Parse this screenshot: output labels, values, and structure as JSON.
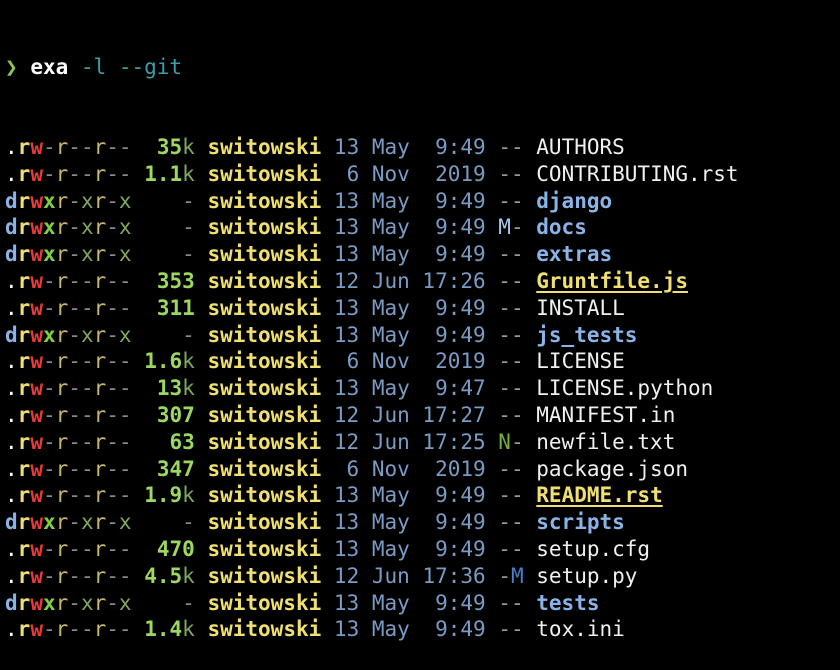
{
  "prompt": {
    "symbol": "❯",
    "command": "exa",
    "args": "-l --git"
  },
  "colors": {
    "background": "#000000",
    "user": "#f0e070",
    "size": "#9cd860",
    "date": "#7a9cc4",
    "directory": "#8ab4e8"
  },
  "rows": [
    {
      "perms": ".rw-r--r--",
      "size": "35",
      "unit": "k",
      "user": "switowski",
      "date": "13 May",
      "time": "9:49",
      "git": "--",
      "name": "AUTHORS",
      "type": "file"
    },
    {
      "perms": ".rw-r--r--",
      "size": "1.1",
      "unit": "k",
      "user": "switowski",
      "date": " 6 Nov",
      "time": "2019",
      "git": "--",
      "name": "CONTRIBUTING.rst",
      "type": "file"
    },
    {
      "perms": "drwxr-xr-x",
      "size": "-",
      "unit": "",
      "user": "switowski",
      "date": "13 May",
      "time": "9:49",
      "git": "--",
      "name": "django",
      "type": "dir"
    },
    {
      "perms": "drwxr-xr-x",
      "size": "-",
      "unit": "",
      "user": "switowski",
      "date": "13 May",
      "time": "9:49",
      "git": "M-",
      "name": "docs",
      "type": "dir"
    },
    {
      "perms": "drwxr-xr-x",
      "size": "-",
      "unit": "",
      "user": "switowski",
      "date": "13 May",
      "time": "9:49",
      "git": "--",
      "name": "extras",
      "type": "dir"
    },
    {
      "perms": ".rw-r--r--",
      "size": "353",
      "unit": "",
      "user": "switowski",
      "date": "12 Jun",
      "time": "17:26",
      "git": "--",
      "name": "Gruntfile.js",
      "type": "highlight"
    },
    {
      "perms": ".rw-r--r--",
      "size": "311",
      "unit": "",
      "user": "switowski",
      "date": "13 May",
      "time": "9:49",
      "git": "--",
      "name": "INSTALL",
      "type": "file"
    },
    {
      "perms": "drwxr-xr-x",
      "size": "-",
      "unit": "",
      "user": "switowski",
      "date": "13 May",
      "time": "9:49",
      "git": "--",
      "name": "js_tests",
      "type": "dir"
    },
    {
      "perms": ".rw-r--r--",
      "size": "1.6",
      "unit": "k",
      "user": "switowski",
      "date": " 6 Nov",
      "time": "2019",
      "git": "--",
      "name": "LICENSE",
      "type": "file"
    },
    {
      "perms": ".rw-r--r--",
      "size": "13",
      "unit": "k",
      "user": "switowski",
      "date": "13 May",
      "time": "9:47",
      "git": "--",
      "name": "LICENSE.python",
      "type": "file"
    },
    {
      "perms": ".rw-r--r--",
      "size": "307",
      "unit": "",
      "user": "switowski",
      "date": "12 Jun",
      "time": "17:27",
      "git": "--",
      "name": "MANIFEST.in",
      "type": "file"
    },
    {
      "perms": ".rw-r--r--",
      "size": "63",
      "unit": "",
      "user": "switowski",
      "date": "12 Jun",
      "time": "17:25",
      "git": "N-",
      "name": "newfile.txt",
      "type": "file"
    },
    {
      "perms": ".rw-r--r--",
      "size": "347",
      "unit": "",
      "user": "switowski",
      "date": " 6 Nov",
      "time": "2019",
      "git": "--",
      "name": "package.json",
      "type": "file"
    },
    {
      "perms": ".rw-r--r--",
      "size": "1.9",
      "unit": "k",
      "user": "switowski",
      "date": "13 May",
      "time": "9:49",
      "git": "--",
      "name": "README.rst",
      "type": "highlight"
    },
    {
      "perms": "drwxr-xr-x",
      "size": "-",
      "unit": "",
      "user": "switowski",
      "date": "13 May",
      "time": "9:49",
      "git": "--",
      "name": "scripts",
      "type": "dir"
    },
    {
      "perms": ".rw-r--r--",
      "size": "470",
      "unit": "",
      "user": "switowski",
      "date": "13 May",
      "time": "9:49",
      "git": "--",
      "name": "setup.cfg",
      "type": "file"
    },
    {
      "perms": ".rw-r--r--",
      "size": "4.5",
      "unit": "k",
      "user": "switowski",
      "date": "12 Jun",
      "time": "17:36",
      "git": "-M",
      "name": "setup.py",
      "type": "file"
    },
    {
      "perms": "drwxr-xr-x",
      "size": "-",
      "unit": "",
      "user": "switowski",
      "date": "13 May",
      "time": "9:49",
      "git": "--",
      "name": "tests",
      "type": "dir"
    },
    {
      "perms": ".rw-r--r--",
      "size": "1.4",
      "unit": "k",
      "user": "switowski",
      "date": "13 May",
      "time": "9:49",
      "git": "--",
      "name": "tox.ini",
      "type": "file"
    }
  ]
}
